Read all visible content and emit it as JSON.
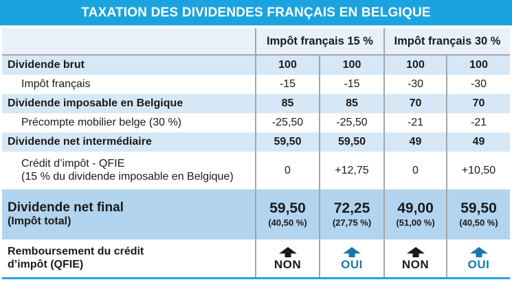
{
  "title": "TAXATION DES DIVIDENDES FRANÇAIS EN BELGIQUE",
  "colors": {
    "title_bar_blue": "#1BA3E0",
    "header_row_bg": "#E8F1F9",
    "subtotal_row_bg": "#D6E8F6",
    "final_row_bg": "#B2D4EE",
    "divider_gray": "#A2A6AA",
    "oui_blue": "#1478AD",
    "non_black": "#1A1A1A"
  },
  "header": {
    "group1": "Impôt français 15 %",
    "group2": "Impôt français 30 %"
  },
  "table": {
    "rows": [
      {
        "label": "Dividende brut",
        "bold": true,
        "shaded": true,
        "indent": false,
        "values": [
          "100",
          "100",
          "100",
          "100"
        ]
      },
      {
        "label": "Impôt français",
        "bold": false,
        "shaded": false,
        "indent": true,
        "values": [
          "-15",
          "-15",
          "-30",
          "-30"
        ]
      },
      {
        "label": "Dividende imposable en Belgique",
        "bold": true,
        "shaded": true,
        "indent": false,
        "values": [
          "85",
          "85",
          "70",
          "70"
        ]
      },
      {
        "label": "Précompte mobilier belge (30 %)",
        "bold": false,
        "shaded": false,
        "indent": true,
        "values": [
          "-25,50",
          "-25,50",
          "-21",
          "-21"
        ]
      },
      {
        "label": "Dividende net intermédiaire",
        "bold": true,
        "shaded": true,
        "indent": false,
        "values": [
          "59,50",
          "59,50",
          "49",
          "49"
        ]
      },
      {
        "label": "Crédit d’impôt - QFIE",
        "label2": "(15 % du dividende imposable en Belgique)",
        "bold": false,
        "shaded": false,
        "indent": true,
        "tall": true,
        "values": [
          "0",
          "+12,75",
          "0",
          "+10,50"
        ]
      }
    ],
    "final_row": {
      "label": "Dividende net final",
      "label2": "(Impôt total)",
      "values": [
        {
          "amount": "59,50",
          "percent": "(40,50 %)"
        },
        {
          "amount": "72,25",
          "percent": "(27,75 %)"
        },
        {
          "amount": "49,00",
          "percent": "(51,00 %)"
        },
        {
          "amount": "59,50",
          "percent": "(40,50 %)"
        }
      ]
    },
    "refund_row": {
      "label": "Remboursement du crédit",
      "label2": "d’impôt (QFIE)",
      "values": [
        {
          "answer": "NON",
          "style": "non",
          "icon": "up-arrow-icon"
        },
        {
          "answer": "OUI",
          "style": "oui",
          "icon": "up-arrow-icon"
        },
        {
          "answer": "NON",
          "style": "non",
          "icon": "up-arrow-icon"
        },
        {
          "answer": "OUI",
          "style": "oui",
          "icon": "up-arrow-icon"
        }
      ]
    }
  },
  "chart_data": {
    "type": "table",
    "title": "TAXATION DES DIVIDENDES FRANÇAIS EN BELGIQUE",
    "column_groups": [
      {
        "label": "Impôt français 15 %",
        "span": 2
      },
      {
        "label": "Impôt français 30 %",
        "span": 2
      }
    ],
    "rows": [
      {
        "label": "Dividende brut",
        "values": [
          100,
          100,
          100,
          100
        ],
        "emphasis": true
      },
      {
        "label": "Impôt français",
        "values": [
          -15,
          -15,
          -30,
          -30
        ],
        "emphasis": false
      },
      {
        "label": "Dividende imposable en Belgique",
        "values": [
          85,
          85,
          70,
          70
        ],
        "emphasis": true
      },
      {
        "label": "Précompte mobilier belge (30 %)",
        "values": [
          -25.5,
          -25.5,
          -21,
          -21
        ],
        "emphasis": false
      },
      {
        "label": "Dividende net intermédiaire",
        "values": [
          59.5,
          59.5,
          49,
          49
        ],
        "emphasis": true
      },
      {
        "label": "Crédit d’impôt - QFIE (15 % du dividende imposable en Belgique)",
        "values": [
          0,
          12.75,
          0,
          10.5
        ],
        "emphasis": false
      },
      {
        "label": "Dividende net final (Impôt total)",
        "values": [
          59.5,
          72.25,
          49.0,
          59.5
        ],
        "percent_total_tax": [
          "40,50 %",
          "27,75 %",
          "51,00 %",
          "40,50 %"
        ],
        "emphasis": true
      },
      {
        "label": "Remboursement du crédit d’impôt (QFIE)",
        "values": [
          "NON",
          "OUI",
          "NON",
          "OUI"
        ],
        "emphasis": false
      }
    ]
  }
}
